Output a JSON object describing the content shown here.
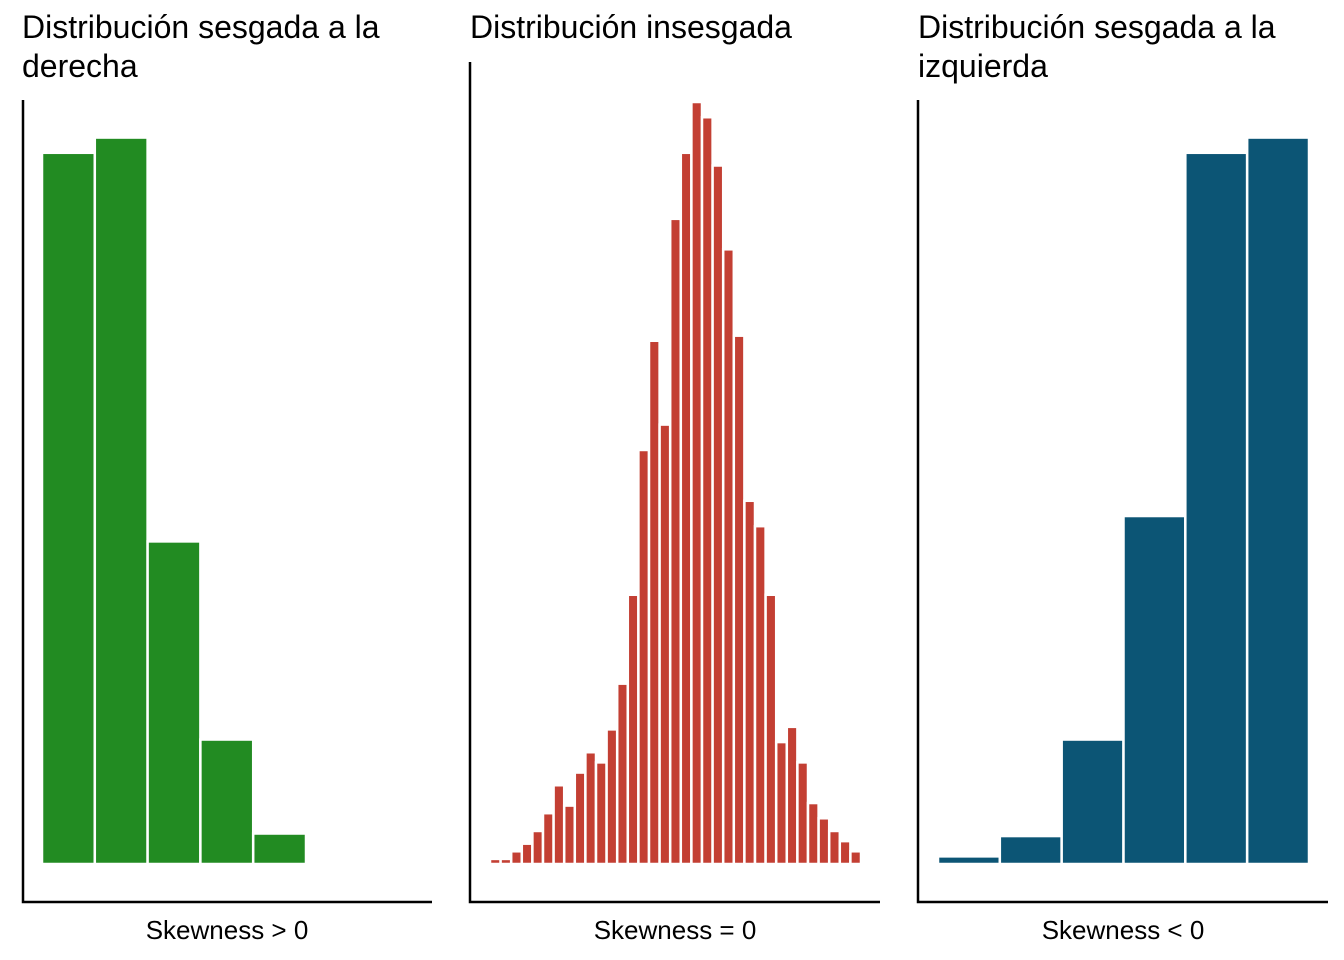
{
  "chart_data": [
    {
      "type": "bar",
      "title_lines": [
        "Distribución sesgada a la",
        "derecha"
      ],
      "xlabel": "Skewness > 0",
      "color": "#228B22",
      "values": [
        280,
        286,
        127,
        49,
        12
      ],
      "ylim": [
        0,
        300
      ],
      "grid": false
    },
    {
      "type": "bar",
      "title_lines": [
        "Distribución insesgada"
      ],
      "xlabel": "Skewness = 0",
      "color": "#C33F33",
      "values": [
        2,
        2,
        5,
        8,
        13,
        20,
        31,
        23,
        36,
        44,
        40,
        53,
        71,
        106,
        163,
        206,
        173,
        254,
        280,
        300,
        294,
        275,
        242,
        208,
        143,
        133,
        106,
        48,
        54,
        40,
        24,
        18,
        13,
        9,
        5
      ],
      "ylim": [
        0,
        300
      ],
      "grid": false
    },
    {
      "type": "bar",
      "title_lines": [
        "Distribución sesgada a la",
        "izquierda"
      ],
      "xlabel": "Skewness < 0",
      "color": "#0C5575",
      "values": [
        3,
        11,
        49,
        137,
        280,
        286
      ],
      "ylim": [
        0,
        300
      ],
      "grid": false
    }
  ]
}
